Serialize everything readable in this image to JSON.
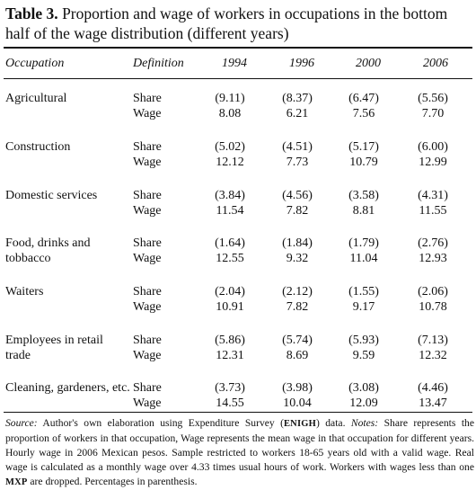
{
  "caption": {
    "label": "Table 3.",
    "text": " Proportion and wage of workers in occupations in the bottom half of the wage distribution (different years)"
  },
  "header": {
    "occupation": "Occupation",
    "definition": "Definition",
    "years": [
      "1994",
      "1996",
      "2000",
      "2006"
    ]
  },
  "rows": [
    {
      "name": "Agricultural",
      "share_label": "Share",
      "wage_label": "Wage",
      "share": [
        "(9.11)",
        "(8.37)",
        "(6.47)",
        "(5.56)"
      ],
      "wage": [
        "8.08",
        "6.21",
        "7.56",
        "7.70"
      ]
    },
    {
      "name": "Construction",
      "share_label": "Share",
      "wage_label": "Wage",
      "share": [
        "(5.02)",
        "(4.51)",
        "(5.17)",
        "(6.00)"
      ],
      "wage": [
        "12.12",
        "7.73",
        "10.79",
        "12.99"
      ]
    },
    {
      "name": "Domestic services",
      "share_label": "Share",
      "wage_label": "Wage",
      "share": [
        "(3.84)",
        "(4.56)",
        "(3.58)",
        "(4.31)"
      ],
      "wage": [
        "11.54",
        "7.82",
        "8.81",
        "11.55"
      ]
    },
    {
      "name": "Food, drinks and tobbacco",
      "share_label": "Share",
      "wage_label": "Wage",
      "share": [
        "(1.64)",
        "(1.84)",
        "(1.79)",
        "(2.76)"
      ],
      "wage": [
        "12.55",
        "9.32",
        "11.04",
        "12.93"
      ]
    },
    {
      "name": "Waiters",
      "share_label": "Share",
      "wage_label": "Wage",
      "share": [
        "(2.04)",
        "(2.12)",
        "(1.55)",
        "(2.06)"
      ],
      "wage": [
        "10.91",
        "7.82",
        "9.17",
        "10.78"
      ]
    },
    {
      "name": "Employees in retail trade",
      "share_label": "Share",
      "wage_label": "Wage",
      "share": [
        "(5.86)",
        "(5.74)",
        "(5.93)",
        "(7.13)"
      ],
      "wage": [
        "12.31",
        "8.69",
        "9.59",
        "12.32"
      ]
    },
    {
      "name": "Cleaning, gardeners, etc.",
      "share_label": "Share",
      "wage_label": "Wage",
      "share": [
        "(3.73)",
        "(3.98)",
        "(3.08)",
        "(4.46)"
      ],
      "wage": [
        "14.55",
        "10.04",
        "12.09",
        "13.47"
      ]
    }
  ],
  "notes": {
    "source_label": "Source:",
    "source_text": " Author's own elaboration using Expenditure Survey (",
    "enigh": "ENIGH",
    "source_end": ") data. ",
    "notes_label": "Notes:",
    "notes_text": " Share represents the proportion of workers in that occupation, Wage represents the mean wage in that occupation for different years. Hourly wage in 2006 Mexican pesos. Sample restricted to workers 18-65 years old with a valid wage. Real wage is calculated as a monthly wage over 4.33 times usual hours of work. Workers with wages less than one ",
    "mxp": "MXP",
    "notes_end": " are dropped. Percentages in parenthesis."
  }
}
